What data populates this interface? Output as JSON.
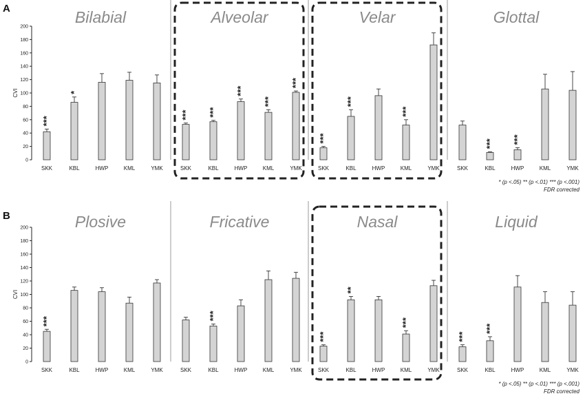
{
  "panels": [
    {
      "letter": "A",
      "ylabel": "CVI",
      "yticks": [
        "0",
        "20",
        "40",
        "60",
        "80",
        "100",
        "120",
        "140",
        "160",
        "180",
        "200"
      ],
      "legend": {
        "line1": "*  (p <.05)  **  (p <.01)  ***  (p <.001)",
        "line2": "FDR corrected"
      },
      "groups": [
        {
          "title": "Bilabial",
          "boxed": false
        },
        {
          "title": "Alveolar",
          "boxed": true
        },
        {
          "title": "Velar",
          "boxed": true
        },
        {
          "title": "Glottal",
          "boxed": false
        }
      ]
    },
    {
      "letter": "B",
      "ylabel": "CVI",
      "yticks": [
        "0",
        "20",
        "40",
        "60",
        "80",
        "100",
        "120",
        "140",
        "160",
        "180",
        "200"
      ],
      "legend": {
        "line1": "*  (p <.05)  **  (p <.01)  ***  (p <.001)",
        "line2": "FDR corrected"
      },
      "groups": [
        {
          "title": "Plosive",
          "boxed": false
        },
        {
          "title": "Fricative",
          "boxed": false
        },
        {
          "title": "Nasal",
          "boxed": true
        },
        {
          "title": "Liquid",
          "boxed": false
        }
      ]
    }
  ],
  "chart_data": [
    {
      "type": "bar",
      "panel": "A",
      "ylabel": "CVI",
      "ylim": [
        0,
        200
      ],
      "categories": [
        "SKK",
        "KBL",
        "HWP",
        "KML",
        "YMK"
      ],
      "groups": [
        {
          "name": "Bilabial",
          "values": [
            42,
            86,
            116,
            119,
            115
          ],
          "errors": [
            4,
            8,
            13,
            12,
            12
          ],
          "sig": [
            "***",
            "*",
            "",
            "",
            ""
          ]
        },
        {
          "name": "Alveolar",
          "values": [
            53,
            57,
            87,
            71,
            101
          ],
          "errors": [
            2,
            2,
            4,
            4,
            2
          ],
          "sig": [
            "***",
            "***",
            "***",
            "***",
            "***"
          ]
        },
        {
          "name": "Velar",
          "values": [
            18,
            65,
            96,
            52,
            172
          ],
          "errors": [
            2,
            10,
            10,
            8,
            18
          ],
          "sig": [
            "***",
            "***",
            "",
            "***",
            ""
          ]
        },
        {
          "name": "Glottal",
          "values": [
            52,
            11,
            15,
            106,
            104
          ],
          "errors": [
            6,
            1,
            3,
            22,
            28
          ],
          "sig": [
            "",
            "***",
            "***",
            "",
            ""
          ]
        }
      ],
      "grid": false
    },
    {
      "type": "bar",
      "panel": "B",
      "ylabel": "CVI",
      "ylim": [
        0,
        200
      ],
      "categories": [
        "SKK",
        "KBL",
        "HWP",
        "KML",
        "YMK"
      ],
      "groups": [
        {
          "name": "Plosive",
          "values": [
            45,
            106,
            104,
            87,
            117
          ],
          "errors": [
            3,
            5,
            6,
            9,
            5
          ],
          "sig": [
            "***",
            "",
            "",
            "",
            ""
          ]
        },
        {
          "name": "Fricative",
          "values": [
            62,
            53,
            83,
            122,
            124
          ],
          "errors": [
            4,
            3,
            9,
            13,
            9
          ],
          "sig": [
            "",
            "***",
            "",
            "",
            ""
          ]
        },
        {
          "name": "Nasal",
          "values": [
            23,
            92,
            92,
            41,
            113
          ],
          "errors": [
            2,
            5,
            5,
            5,
            8
          ],
          "sig": [
            "***",
            "**",
            "",
            "***",
            ""
          ]
        },
        {
          "name": "Liquid",
          "values": [
            22,
            31,
            111,
            88,
            84
          ],
          "errors": [
            3,
            6,
            17,
            16,
            20
          ],
          "sig": [
            "***",
            "***",
            "",
            "",
            ""
          ]
        }
      ],
      "grid": false
    }
  ]
}
